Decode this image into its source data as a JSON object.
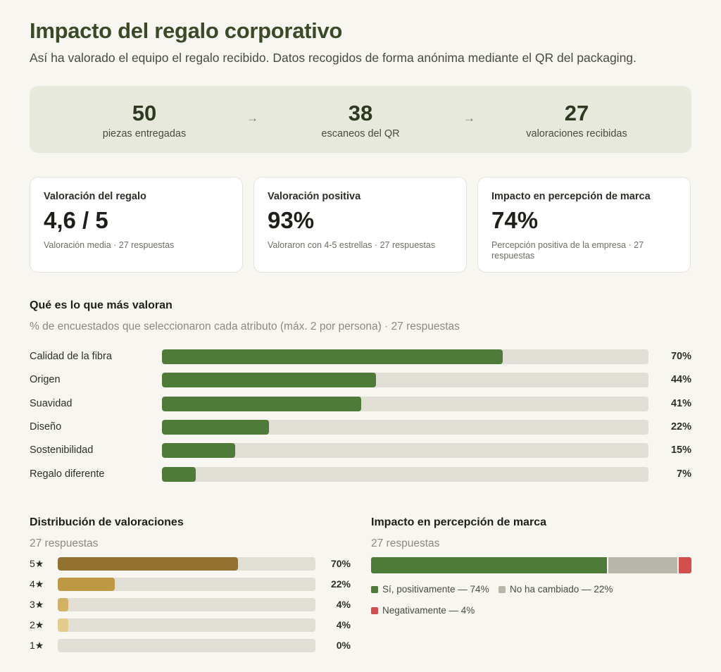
{
  "header": {
    "title": "Impacto del regalo corporativo",
    "subtitle": "Así ha valorado el equipo el regalo recibido. Datos recogidos de forma anónima mediante el QR del packaging."
  },
  "funnel": {
    "steps": [
      {
        "value": "50",
        "label": "piezas entregadas"
      },
      {
        "value": "38",
        "label": "escaneos del QR"
      },
      {
        "value": "27",
        "label": "valoraciones recibidas"
      }
    ],
    "arrow": "→"
  },
  "kpis": [
    {
      "title": "Valoración del regalo",
      "value": "4,6 / 5",
      "sub": "Valoración media · 27 respuestas"
    },
    {
      "title": "Valoración positiva",
      "value": "93%",
      "sub": "Valoraron con 4-5 estrellas · 27 respuestas"
    },
    {
      "title": "Impacto en percepción de marca",
      "value": "74%",
      "sub": "Percepción positiva de la empresa · 27 respuestas"
    }
  ],
  "attributes": {
    "title": "Qué es lo que más valoran",
    "subtitle": "% de encuestados que seleccionaron cada atributo (máx. 2 por persona) · 27 respuestas"
  },
  "ratings": {
    "title": "Distribución de valoraciones",
    "subtitle": "27 respuestas"
  },
  "perception": {
    "title": "Impacto en percepción de marca",
    "subtitle": "27 respuestas"
  },
  "colors": {
    "accent_green": "#4e7b38",
    "neutral_gray": "#b8b5aa",
    "negative_red": "#d24f4b",
    "star5": "#93722f",
    "star4": "#bf9845",
    "star3": "#d3b064",
    "star2": "#e3cc8a"
  },
  "chart_data": [
    {
      "type": "bar",
      "orientation": "horizontal",
      "categories": [
        "Calidad de la fibra",
        "Origen",
        "Suavidad",
        "Diseño",
        "Sostenibilidad",
        "Regalo diferente"
      ],
      "values": [
        70,
        44,
        41,
        22,
        15,
        7
      ],
      "value_labels": [
        "70%",
        "44%",
        "41%",
        "22%",
        "15%",
        "7%"
      ],
      "xlim": [
        0,
        100
      ]
    },
    {
      "type": "bar",
      "orientation": "horizontal",
      "categories": [
        "5★",
        "4★",
        "3★",
        "2★",
        "1★"
      ],
      "values": [
        70,
        22,
        4,
        4,
        0
      ],
      "value_labels": [
        "70%",
        "22%",
        "4%",
        "4%",
        "0%"
      ],
      "xlim": [
        0,
        100
      ]
    },
    {
      "type": "bar",
      "orientation": "horizontal",
      "stacked": true,
      "categories": [
        "Sí, positivamente",
        "No ha cambiado",
        "Negativamente"
      ],
      "values": [
        74,
        22,
        4
      ],
      "legend": [
        "Sí, positivamente — 74%",
        "No ha cambiado — 22%",
        "Negativamente — 4%"
      ],
      "legend_position": "bottom"
    }
  ]
}
